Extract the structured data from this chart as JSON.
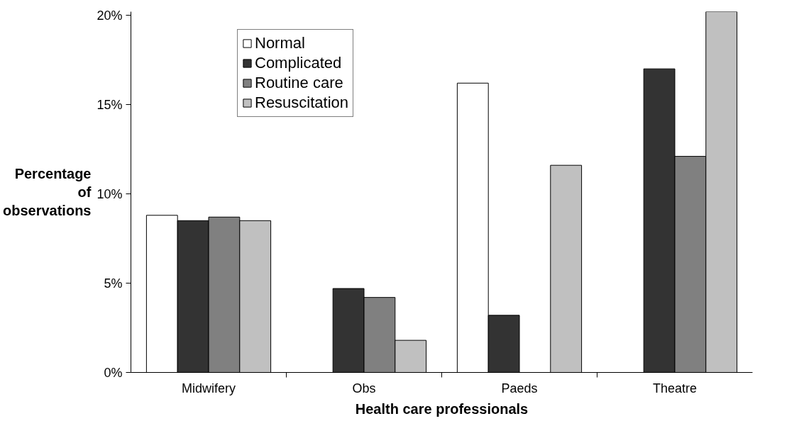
{
  "chart_data": {
    "type": "bar",
    "xlabel": "Health care professionals",
    "ylabel": "Percentage of observations",
    "categories": [
      "Midwifery",
      "Obs",
      "Paeds",
      "Theatre"
    ],
    "series": [
      {
        "name": "Normal",
        "color": "#ffffff",
        "values": [
          8.8,
          null,
          16.2,
          null
        ]
      },
      {
        "name": "Complicated",
        "color": "#333333",
        "values": [
          8.5,
          4.7,
          3.2,
          17.0
        ]
      },
      {
        "name": "Routine care",
        "color": "#808080",
        "values": [
          8.7,
          4.2,
          null,
          12.1
        ]
      },
      {
        "name": "Resuscitation",
        "color": "#c0c0c0",
        "values": [
          8.5,
          1.8,
          11.6,
          20.2
        ]
      }
    ],
    "ylim": [
      0,
      20.2
    ],
    "yticks": [
      {
        "value": 0,
        "label": "0%"
      },
      {
        "value": 5,
        "label": "5%"
      },
      {
        "value": 10,
        "label": "10%"
      },
      {
        "value": 15,
        "label": "15%"
      },
      {
        "value": 20,
        "label": "20%"
      }
    ],
    "grid": false,
    "legend": "top left"
  }
}
